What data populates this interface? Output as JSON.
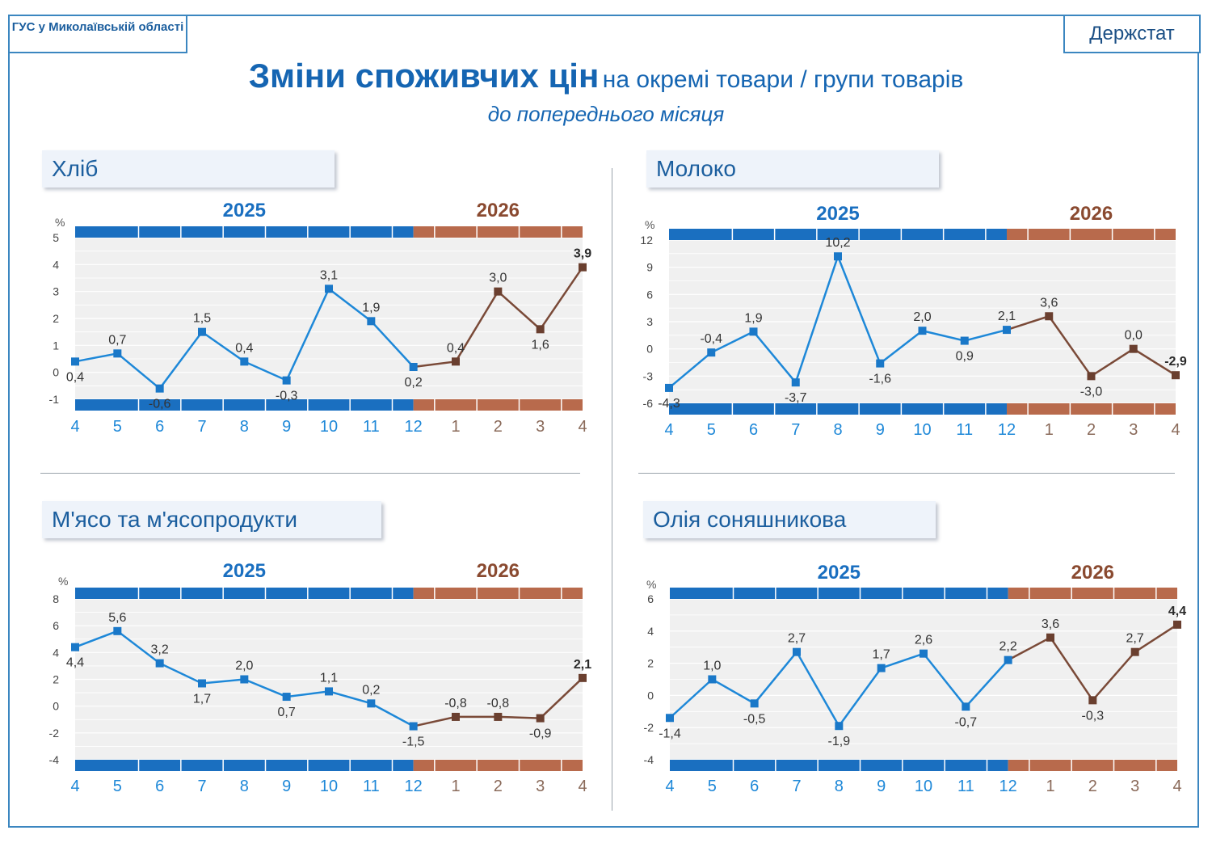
{
  "header": {
    "left_badge": "ГУС у Миколаївській області",
    "right_badge": "Держстат",
    "title_bold": "Зміни споживчих цін",
    "title_rest": "на окремі товари / групи товарів",
    "subtitle": "до попереднього місяця"
  },
  "colors": {
    "blue": "#1a6fc0",
    "brown": "#b86a4c",
    "line_2025": "#1e88d8",
    "line_2026": "#7a4a38"
  },
  "chart_data": [
    {
      "type": "line",
      "title": "Хліб",
      "unit": "%",
      "years": [
        "2025",
        "2026"
      ],
      "x": [
        "4",
        "5",
        "6",
        "7",
        "8",
        "9",
        "10",
        "11",
        "12",
        "1",
        "2",
        "3",
        "4"
      ],
      "values": [
        0.4,
        0.7,
        -0.6,
        1.5,
        0.4,
        -0.3,
        3.1,
        1.9,
        0.2,
        0.4,
        3.0,
        1.6,
        3.9
      ],
      "labels": [
        "0,4",
        "0,7",
        "-0,6",
        "1,5",
        "0,4",
        "-0,3",
        "3,1",
        "1,9",
        "0,2",
        "0,4",
        "3,0",
        "1,6",
        "3,9"
      ],
      "yticks": [
        -1,
        0,
        1,
        2,
        3,
        4,
        5
      ],
      "ylim": [
        -1,
        5
      ],
      "grid": true
    },
    {
      "type": "line",
      "title": "Молоко",
      "unit": "%",
      "years": [
        "2025",
        "2026"
      ],
      "x": [
        "4",
        "5",
        "6",
        "7",
        "8",
        "9",
        "10",
        "11",
        "12",
        "1",
        "2",
        "3",
        "4"
      ],
      "values": [
        -4.3,
        -0.4,
        1.9,
        -3.7,
        10.2,
        -1.6,
        2.0,
        0.9,
        2.1,
        3.6,
        -3.0,
        0.0,
        -2.9
      ],
      "labels": [
        "-4,3",
        "-0,4",
        "1,9",
        "-3,7",
        "10,2",
        "-1,6",
        "2,0",
        "0,9",
        "2,1",
        "3,6",
        "-3,0",
        "0,0",
        "-2,9"
      ],
      "yticks": [
        -6,
        -3,
        0,
        3,
        6,
        9,
        12
      ],
      "ylim": [
        -6,
        12
      ],
      "grid": true
    },
    {
      "type": "line",
      "title": "М'ясо та м'ясопродукти",
      "unit": "%",
      "years": [
        "2025",
        "2026"
      ],
      "x": [
        "4",
        "5",
        "6",
        "7",
        "8",
        "9",
        "10",
        "11",
        "12",
        "1",
        "2",
        "3",
        "4"
      ],
      "values": [
        4.4,
        5.6,
        3.2,
        1.7,
        2.0,
        0.7,
        1.1,
        0.2,
        -1.5,
        -0.8,
        -0.8,
        -0.9,
        2.1
      ],
      "labels": [
        "4,4",
        "5,6",
        "3,2",
        "1,7",
        "2,0",
        "0,7",
        "1,1",
        "0,2",
        "-1,5",
        "-0,8",
        "-0,8",
        "-0,9",
        "2,1"
      ],
      "yticks": [
        -4,
        -2,
        0,
        2,
        4,
        6,
        8
      ],
      "ylim": [
        -4,
        8
      ],
      "grid": true
    },
    {
      "type": "line",
      "title": "Олія соняшникова",
      "unit": "%",
      "years": [
        "2025",
        "2026"
      ],
      "x": [
        "4",
        "5",
        "6",
        "7",
        "8",
        "9",
        "10",
        "11",
        "12",
        "1",
        "2",
        "3",
        "4"
      ],
      "values": [
        -1.4,
        1.0,
        -0.5,
        2.7,
        -1.9,
        1.7,
        2.6,
        -0.7,
        2.2,
        3.6,
        -0.3,
        2.7,
        4.4
      ],
      "labels": [
        "-1,4",
        "1,0",
        "-0,5",
        "2,7",
        "-1,9",
        "1,7",
        "2,6",
        "-0,7",
        "2,2",
        "3,6",
        "-0,3",
        "2,7",
        "4,4"
      ],
      "yticks": [
        -4,
        -2,
        0,
        2,
        4,
        6
      ],
      "ylim": [
        -4,
        6
      ],
      "grid": true
    }
  ]
}
